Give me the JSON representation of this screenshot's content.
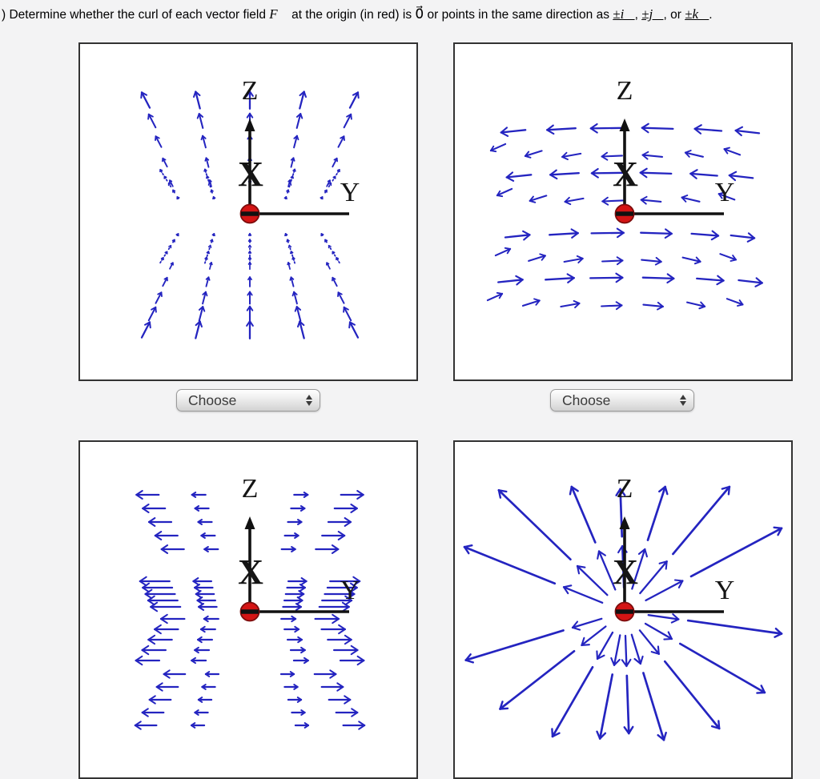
{
  "question": {
    "text_start": ") Determine whether the curl of each vector field ",
    "f_vector": "F⃗",
    "text_mid1": " at the origin (in red) is ",
    "zero_vector": "0⃗",
    "text_mid2": " or points in the same direction as ",
    "i_vector": "±i⃗",
    "sep1": ", ",
    "j_vector": "±j⃗",
    "sep2": ", or ",
    "k_vector": "±k⃗",
    "period": "."
  },
  "colors": {
    "arrow_blue": "#2424c0",
    "axis_black": "#111111",
    "origin_red": "#d41414",
    "origin_rim": "#7c0c0c",
    "panel_border": "#333333",
    "page_bg": "#f3f3f4"
  },
  "panels": [
    {
      "id": "a",
      "axis_labels": {
        "z": "Z",
        "x": "X",
        "y": "Y"
      },
      "pattern": "fountain",
      "description": "small blue arrows pointing up-outward above the origin, up-inward below, nearly zero near the z=0 plane",
      "dropdown": {
        "label": "Choose"
      }
    },
    {
      "id": "b",
      "axis_labels": {
        "z": "Z",
        "x": "X",
        "y": "Y"
      },
      "pattern": "swirl",
      "description": "horizontal arrow rings: pointing left above the origin plane, pointing right below",
      "dropdown": {
        "label": "Choose"
      }
    },
    {
      "id": "c",
      "axis_labels": {
        "z": "Z",
        "x": "X",
        "y": "Y"
      },
      "pattern": "horizontal-outward",
      "description": "horizontal arrows pointing away from the z-axis, longer farther out"
    },
    {
      "id": "d",
      "axis_labels": {
        "z": "Z",
        "x": "X",
        "y": "Y"
      },
      "pattern": "radial-burst",
      "description": "long straight arrows radiating outward from the origin in all directions"
    }
  ]
}
